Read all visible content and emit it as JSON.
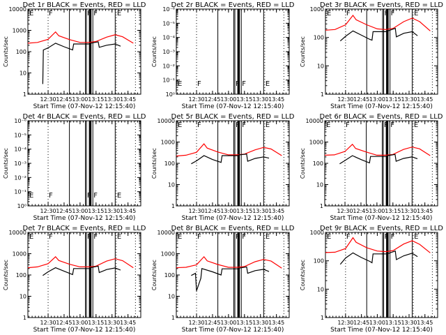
{
  "figure": {
    "xlabel": "Start Time (07-Nov-12 12:15:40)",
    "ylabel": "Counts/sec",
    "legend_text": "BLACK = Events, RED = LLD"
  },
  "colors": {
    "events": "#000000",
    "lld": "#ff0000",
    "frame": "#000000",
    "background": "#ffffff"
  },
  "chart_data": [
    {
      "type": "line",
      "title": "Det 1r BLACK = Events, RED = LLD",
      "xlabel": "Start Time (07-Nov-12 12:15:40)",
      "ylabel": "Counts/sec",
      "yscale": "log",
      "ylim": [
        1,
        10000
      ],
      "yticks": [
        "1",
        "10",
        "100",
        "1000",
        "10000"
      ],
      "xticks": [
        "12:30",
        "12:45",
        "13:00",
        "13:15",
        "13:30",
        "13:45"
      ],
      "xlim": [
        "12:11",
        "13:57"
      ],
      "has_data": true,
      "series": [
        {
          "name": "LLD",
          "color": "red",
          "x": [
            "12:11",
            "12:20",
            "12:30",
            "12:37",
            "12:40",
            "12:50",
            "13:00",
            "13:08",
            "13:15",
            "13:25",
            "13:33",
            "13:40",
            "13:50"
          ],
          "y": [
            250,
            270,
            380,
            850,
            560,
            370,
            270,
            270,
            300,
            480,
            620,
            500,
            250
          ]
        },
        {
          "name": "Events",
          "color": "black",
          "x": [
            "12:25",
            "12:25.5",
            "12:30",
            "12:37",
            "12:45",
            "12:53",
            "12:54",
            "13:09",
            "13:10",
            "13:17",
            "13:18",
            "13:25",
            "13:33",
            "13:38"
          ],
          "y": [
            3,
            120,
            150,
            250,
            170,
            120,
            230,
            230,
            250,
            290,
            160,
            200,
            230,
            180
          ]
        }
      ]
    },
    {
      "type": "line",
      "title": "Det 2r BLACK = Events, RED = LLD",
      "xlabel": "Start Time (07-Nov-12 12:15:40)",
      "ylabel": "Counts/sec",
      "yscale": "log",
      "ylim": [
        1,
        1000000
      ],
      "yticks": [
        "10⁰",
        "10⁻¹",
        "10⁻²",
        "10⁻³",
        "10⁻⁴",
        "10⁻⁵",
        "10⁻⁶"
      ],
      "xticks": [
        "12:30",
        "12:45",
        "13:00",
        "13:15",
        "13:30",
        "13:45"
      ],
      "xlim": [
        "12:11",
        "13:57"
      ],
      "has_data": false,
      "series": []
    },
    {
      "type": "line",
      "title": "Det 3r BLACK = Events, RED = LLD",
      "xlabel": "Start Time (07-Nov-12 12:15:40)",
      "ylabel": "Counts/sec",
      "yscale": "log",
      "ylim": [
        1,
        1000
      ],
      "yticks": [
        "1",
        "10",
        "100",
        "1000"
      ],
      "xticks": [
        "12:30",
        "12:45",
        "13:00",
        "13:15",
        "13:30",
        "13:45"
      ],
      "xlim": [
        "12:11",
        "13:57"
      ],
      "has_data": true,
      "series": [
        {
          "name": "LLD",
          "color": "red",
          "x": [
            "12:11",
            "12:20",
            "12:30",
            "12:37",
            "12:40",
            "12:50",
            "13:00",
            "13:08",
            "13:15",
            "13:25",
            "13:33",
            "13:40",
            "13:50"
          ],
          "y": [
            180,
            190,
            280,
            600,
            420,
            280,
            200,
            190,
            210,
            360,
            480,
            360,
            170
          ]
        },
        {
          "name": "Events",
          "color": "black",
          "x": [
            "12:25",
            "12:30",
            "12:37",
            "12:45",
            "12:53",
            "12:55",
            "12:56",
            "13:09",
            "13:10",
            "13:17",
            "13:18",
            "13:25",
            "13:33",
            "13:38"
          ],
          "y": [
            75,
            110,
            170,
            120,
            85,
            80,
            160,
            160,
            170,
            210,
            105,
            140,
            160,
            115
          ]
        }
      ]
    },
    {
      "type": "line",
      "title": "Det 4r BLACK = Events, RED = LLD",
      "xlabel": "Start Time (07-Nov-12 12:15:40)",
      "ylabel": "Counts/sec",
      "yscale": "log",
      "ylim": [
        1,
        1000000
      ],
      "yticks": [
        "10⁰",
        "10⁻¹",
        "10⁻²",
        "10⁻³",
        "10⁻⁴",
        "10⁻⁵",
        "10⁻⁶"
      ],
      "xticks": [
        "12:30",
        "12:45",
        "13:00",
        "13:15",
        "13:30",
        "13:45"
      ],
      "xlim": [
        "12:11",
        "13:57"
      ],
      "has_data": false,
      "series": []
    },
    {
      "type": "line",
      "title": "Det 5r BLACK = Events, RED = LLD",
      "xlabel": "Start Time (07-Nov-12 12:15:40)",
      "ylabel": "Counts/sec",
      "yscale": "log",
      "ylim": [
        1,
        10000
      ],
      "yticks": [
        "1",
        "10",
        "100",
        "1000",
        "10000"
      ],
      "xticks": [
        "12:30",
        "12:45",
        "13:00",
        "13:15",
        "13:30",
        "13:45"
      ],
      "xlim": [
        "12:11",
        "13:57"
      ],
      "has_data": true,
      "series": [
        {
          "name": "LLD",
          "color": "red",
          "x": [
            "12:11",
            "12:20",
            "12:30",
            "12:37",
            "12:40",
            "12:50",
            "13:00",
            "13:08",
            "13:15",
            "13:25",
            "13:33",
            "13:40",
            "13:50"
          ],
          "y": [
            220,
            240,
            330,
            820,
            520,
            340,
            250,
            250,
            270,
            430,
            560,
            470,
            230
          ]
        },
        {
          "name": "Events",
          "color": "black",
          "x": [
            "12:25",
            "12:30",
            "12:37",
            "12:45",
            "12:53",
            "12:54",
            "13:09",
            "13:10",
            "13:17",
            "13:18",
            "13:25",
            "13:33",
            "13:38"
          ],
          "y": [
            95,
            130,
            230,
            150,
            110,
            230,
            230,
            250,
            270,
            125,
            170,
            200,
            175
          ]
        }
      ]
    },
    {
      "type": "line",
      "title": "Det 6r BLACK = Events, RED = LLD",
      "xlabel": "Start Time (07-Nov-12 12:15:40)",
      "ylabel": "Counts/sec",
      "yscale": "log",
      "ylim": [
        1,
        10000
      ],
      "yticks": [
        "1",
        "10",
        "100",
        "1000",
        "10000"
      ],
      "xticks": [
        "12:30",
        "12:45",
        "13:00",
        "13:15",
        "13:30",
        "13:45"
      ],
      "xlim": [
        "12:11",
        "13:57"
      ],
      "has_data": true,
      "series": [
        {
          "name": "LLD",
          "color": "red",
          "x": [
            "12:11",
            "12:20",
            "12:30",
            "12:37",
            "12:40",
            "12:50",
            "13:00",
            "13:08",
            "13:15",
            "13:25",
            "13:33",
            "13:40",
            "13:50"
          ],
          "y": [
            240,
            250,
            360,
            780,
            500,
            340,
            240,
            240,
            260,
            450,
            580,
            480,
            230
          ]
        },
        {
          "name": "Events",
          "color": "black",
          "x": [
            "12:25",
            "12:30",
            "12:37",
            "12:45",
            "12:53",
            "12:54",
            "13:09",
            "13:10",
            "13:17",
            "13:18",
            "13:25",
            "13:33",
            "13:38"
          ],
          "y": [
            95,
            135,
            230,
            150,
            105,
            210,
            210,
            230,
            260,
            125,
            170,
            200,
            165
          ]
        }
      ]
    },
    {
      "type": "line",
      "title": "Det 7r BLACK = Events, RED = LLD",
      "xlabel": "Start Time (07-Nov-12 12:15:40)",
      "ylabel": "Counts/sec",
      "yscale": "log",
      "ylim": [
        1,
        10000
      ],
      "yticks": [
        "1",
        "10",
        "100",
        "1000",
        "10000"
      ],
      "xticks": [
        "12:30",
        "12:45",
        "13:00",
        "13:15",
        "13:30",
        "13:45"
      ],
      "xlim": [
        "12:11",
        "13:57"
      ],
      "has_data": true,
      "series": [
        {
          "name": "LLD",
          "color": "red",
          "x": [
            "12:11",
            "12:20",
            "12:30",
            "12:37",
            "12:40",
            "12:50",
            "13:00",
            "13:08",
            "13:15",
            "13:25",
            "13:33",
            "13:40",
            "13:50"
          ],
          "y": [
            220,
            240,
            340,
            720,
            480,
            320,
            240,
            240,
            260,
            450,
            580,
            470,
            220
          ]
        },
        {
          "name": "Events",
          "color": "black",
          "x": [
            "12:25",
            "12:30",
            "12:37",
            "12:45",
            "12:53",
            "12:54",
            "13:09",
            "13:10",
            "13:17",
            "13:18",
            "13:25",
            "13:33",
            "13:38"
          ],
          "y": [
            95,
            140,
            220,
            150,
            105,
            200,
            200,
            220,
            260,
            130,
            180,
            215,
            170
          ]
        }
      ]
    },
    {
      "type": "line",
      "title": "Det 8r BLACK = Events, RED = LLD",
      "xlabel": "Start Time (07-Nov-12 12:15:40)",
      "ylabel": "Counts/sec",
      "yscale": "log",
      "ylim": [
        1,
        10000
      ],
      "yticks": [
        "1",
        "10",
        "100",
        "1000",
        "10000"
      ],
      "xticks": [
        "12:30",
        "12:45",
        "13:00",
        "13:15",
        "13:30",
        "13:45"
      ],
      "xlim": [
        "12:11",
        "13:57"
      ],
      "has_data": true,
      "series": [
        {
          "name": "LLD",
          "color": "red",
          "x": [
            "12:11",
            "12:20",
            "12:30",
            "12:37",
            "12:40",
            "12:50",
            "13:00",
            "13:08",
            "13:15",
            "13:25",
            "13:33",
            "13:40",
            "13:50"
          ],
          "y": [
            220,
            230,
            300,
            720,
            460,
            310,
            230,
            230,
            250,
            420,
            540,
            450,
            210
          ]
        },
        {
          "name": "Events",
          "color": "black",
          "x": [
            "12:25",
            "12:29",
            "12:30",
            "12:34",
            "12:35",
            "12:45",
            "12:53",
            "12:54",
            "13:09",
            "13:10",
            "13:17",
            "13:18",
            "13:25",
            "13:33",
            "13:38"
          ],
          "y": [
            95,
            120,
            18,
            70,
            200,
            140,
            100,
            195,
            195,
            210,
            240,
            120,
            160,
            185,
            145
          ]
        }
      ]
    },
    {
      "type": "line",
      "title": "Det 9r BLACK = Events, RED = LLD",
      "xlabel": "Start Time (07-Nov-12 12:15:40)",
      "ylabel": "Counts/sec",
      "yscale": "log",
      "ylim": [
        1,
        1000
      ],
      "yticks": [
        "1",
        "10",
        "100",
        "1000"
      ],
      "xticks": [
        "12:30",
        "12:45",
        "13:00",
        "13:15",
        "13:30",
        "13:45"
      ],
      "xlim": [
        "12:11",
        "13:57"
      ],
      "has_data": true,
      "series": [
        {
          "name": "LLD",
          "color": "red",
          "x": [
            "12:11",
            "12:20",
            "12:30",
            "12:37",
            "12:40",
            "12:50",
            "13:00",
            "13:08",
            "13:15",
            "13:25",
            "13:33",
            "13:40",
            "13:50"
          ],
          "y": [
            195,
            200,
            270,
            650,
            450,
            290,
            220,
            210,
            230,
            390,
            510,
            380,
            190
          ]
        },
        {
          "name": "Events",
          "color": "black",
          "x": [
            "12:25",
            "12:30",
            "12:37",
            "12:45",
            "12:53",
            "12:55",
            "12:56",
            "13:09",
            "13:10",
            "13:17",
            "13:18",
            "13:25",
            "13:33",
            "13:38"
          ],
          "y": [
            75,
            125,
            190,
            130,
            95,
            85,
            175,
            175,
            180,
            220,
            110,
            150,
            185,
            140
          ]
        }
      ]
    }
  ],
  "markers": {
    "vertical_lines": [
      {
        "time": "12:30",
        "style": "dotted",
        "label": "F"
      },
      {
        "time": "12:50",
        "style": "solid"
      },
      {
        "time": "13:05",
        "style": "solid"
      },
      {
        "time": "13:06",
        "style": "solid",
        "label": "F"
      },
      {
        "time": "13:09",
        "style": "thick"
      },
      {
        "time": "13:10",
        "style": "thick"
      },
      {
        "time": "13:12",
        "style": "solid",
        "label": "F"
      },
      {
        "time": "13:33",
        "style": "solid"
      },
      {
        "time": "13:34",
        "style": "dotted",
        "label": "E"
      },
      {
        "time": "13:52",
        "style": "dotted"
      }
    ],
    "start_label": "E"
  }
}
